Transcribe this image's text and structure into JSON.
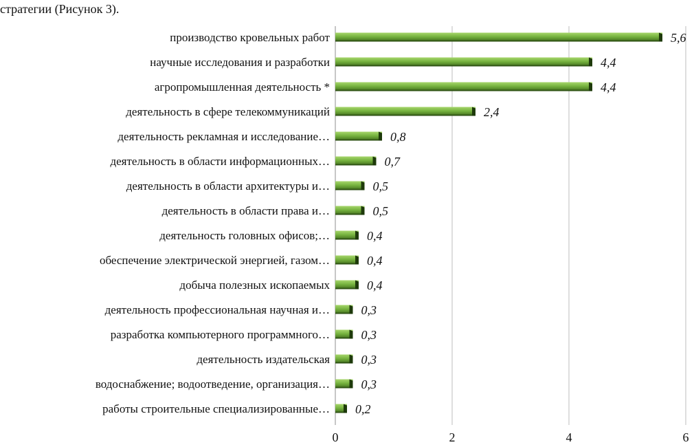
{
  "intro_text": "стратегии (Рисунок 3).",
  "colors": {
    "bar_light": "#a7d66c",
    "bar_mid": "#76b33f",
    "bar_dark": "#3f6b1c",
    "bar_edge": "#1e3a0b",
    "grid": "#bdbdbd",
    "axis": "#8c8c8c"
  },
  "chart_data": {
    "type": "bar",
    "orientation": "horizontal",
    "title": "",
    "xlabel": "",
    "ylabel": "",
    "xlim": [
      0,
      6
    ],
    "xticks": [
      0,
      2,
      4,
      6
    ],
    "grid": true,
    "legend": "none",
    "categories": [
      "производство кровельных работ",
      "научные исследования и разработки",
      "агропромышленная деятельность *",
      "деятельность в сфере телекоммуникаций",
      "деятельность рекламная и исследование…",
      "деятельность в области информационных…",
      "деятельность в области архитектуры и…",
      "деятельность в области права и…",
      "деятельность головных офисов;…",
      "обеспечение электрической энергией, газом…",
      "добыча полезных ископаемых",
      "деятельность профессиональная научная и…",
      "разработка компьютерного программного…",
      "деятельность издательская",
      "водоснабжение; водоотведение, организация…",
      "работы строительные специализированные…"
    ],
    "values": [
      5.6,
      4.4,
      4.4,
      2.4,
      0.8,
      0.7,
      0.5,
      0.5,
      0.4,
      0.4,
      0.4,
      0.3,
      0.3,
      0.3,
      0.3,
      0.2
    ],
    "value_labels": [
      "5,6",
      "4,4",
      "4,4",
      "2,4",
      "0,8",
      "0,7",
      "0,5",
      "0,5",
      "0,4",
      "0,4",
      "0,4",
      "0,3",
      "0,3",
      "0,3",
      "0,3",
      "0,2"
    ]
  }
}
